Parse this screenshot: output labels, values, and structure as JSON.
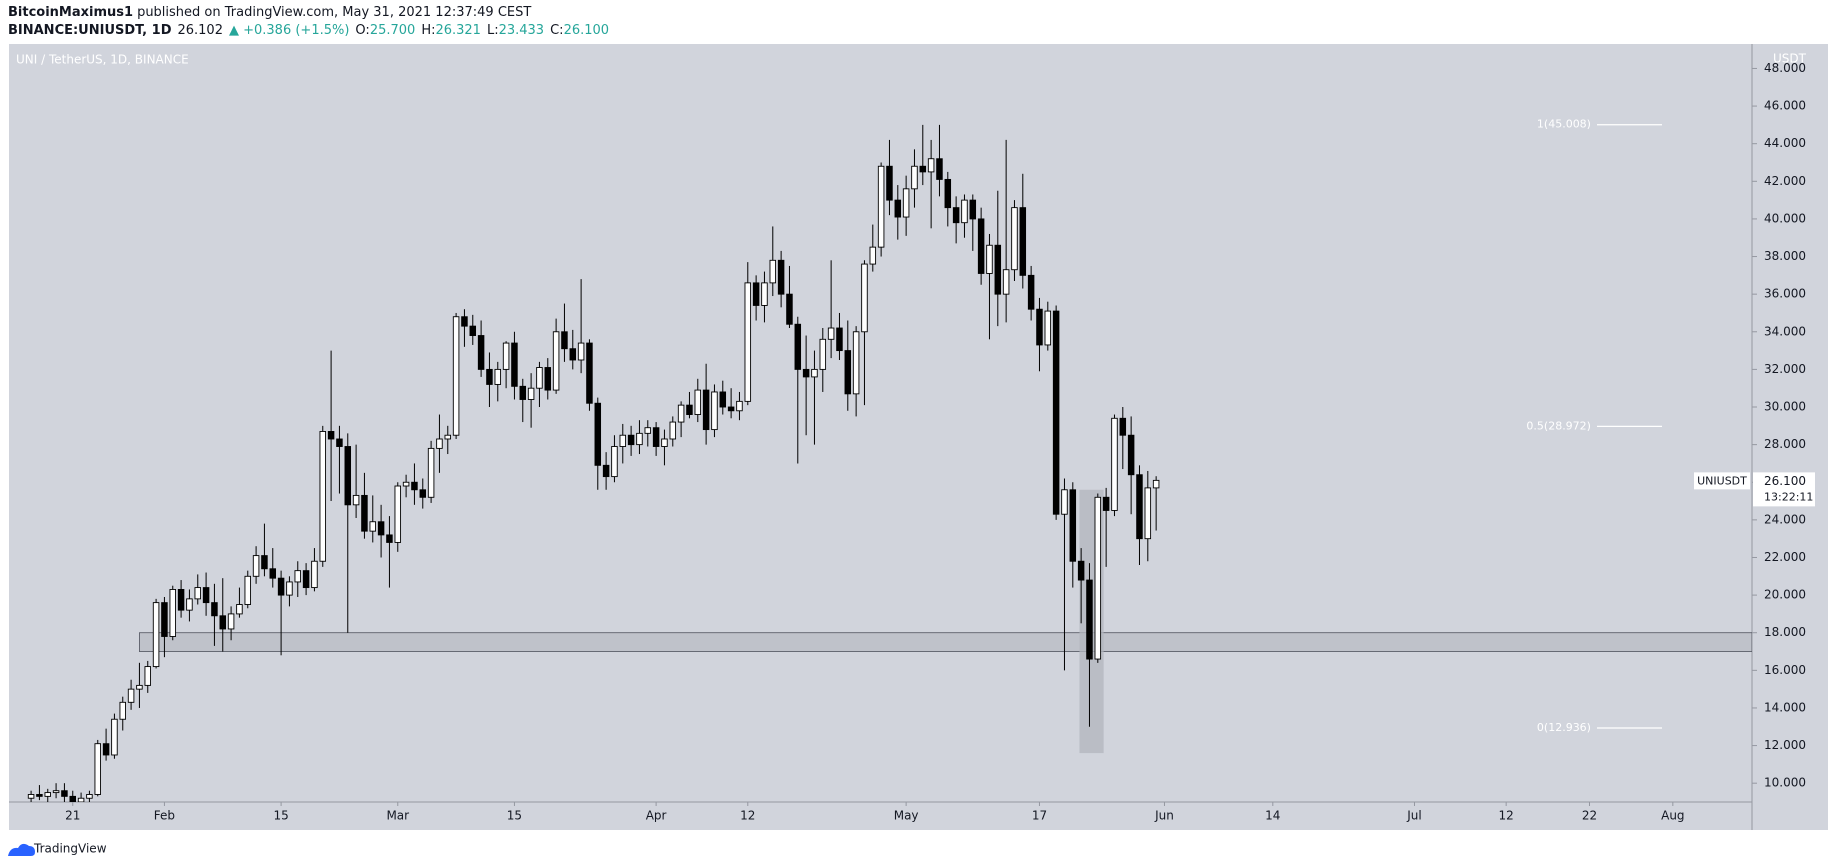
{
  "header": {
    "author": "BitcoinMaximus1",
    "published": "published on TradingView.com, May 31, 2021 12:37:49 CEST",
    "symbol": "BINANCE:UNIUSDT, 1D",
    "last": "26.102",
    "change": "▲ +0.386 (+1.5%)",
    "ohlc": [
      {
        "label": "O:",
        "value": "25.700"
      },
      {
        "label": "H:",
        "value": "26.321"
      },
      {
        "label": "L:",
        "value": "23.433"
      },
      {
        "label": "C:",
        "value": "26.100"
      }
    ]
  },
  "footer": {
    "brand": "TradingView"
  },
  "chart_data": {
    "type": "candlestick",
    "title": "UNI / TetherUS, 1D, BINANCE",
    "y_axis_label": "USDT",
    "up_color": "#ffffff",
    "down_color": "#000000",
    "outline_color": "#000000",
    "grid": false,
    "xlim": [
      13.35,
      222.5
    ],
    "ylim": [
      9.0,
      49.3
    ],
    "xticks": [
      {
        "value": 21,
        "label": "21"
      },
      {
        "value": 32,
        "label": "Feb"
      },
      {
        "value": 46,
        "label": "15"
      },
      {
        "value": 60,
        "label": "Mar"
      },
      {
        "value": 74,
        "label": "15"
      },
      {
        "value": 91,
        "label": "Apr"
      },
      {
        "value": 102,
        "label": "12"
      },
      {
        "value": 121,
        "label": "May"
      },
      {
        "value": 137,
        "label": "17"
      },
      {
        "value": 152,
        "label": "Jun"
      },
      {
        "value": 165,
        "label": "14"
      },
      {
        "value": 182,
        "label": "Jul"
      },
      {
        "value": 193,
        "label": "12"
      },
      {
        "value": 203,
        "label": "22"
      },
      {
        "value": 213,
        "label": "Aug"
      }
    ],
    "yticks": [
      {
        "value": 10,
        "label": "10.000"
      },
      {
        "value": 12,
        "label": "12.000"
      },
      {
        "value": 14,
        "label": "14.000"
      },
      {
        "value": 16,
        "label": "16.000"
      },
      {
        "value": 18,
        "label": "18.000"
      },
      {
        "value": 20,
        "label": "20.000"
      },
      {
        "value": 22,
        "label": "22.000"
      },
      {
        "value": 24,
        "label": "24.000"
      },
      {
        "value": 26,
        "label": "26.000"
      },
      {
        "value": 28,
        "label": "28.000"
      },
      {
        "value": 30,
        "label": "30.000"
      },
      {
        "value": 32,
        "label": "32.000"
      },
      {
        "value": 34,
        "label": "34.000"
      },
      {
        "value": 36,
        "label": "36.000"
      },
      {
        "value": 38,
        "label": "38.000"
      },
      {
        "value": 40,
        "label": "40.000"
      },
      {
        "value": 42,
        "label": "42.000"
      },
      {
        "value": 44,
        "label": "44.000"
      },
      {
        "value": 46,
        "label": "46.000"
      },
      {
        "value": 48,
        "label": "48.000"
      }
    ],
    "x": [
      16,
      17,
      18,
      19,
      20,
      21,
      22,
      23,
      24,
      25,
      26,
      27,
      28,
      29,
      30,
      31,
      32,
      33,
      34,
      35,
      36,
      37,
      38,
      39,
      40,
      41,
      42,
      43,
      44,
      45,
      46,
      47,
      48,
      49,
      50,
      51,
      52,
      53,
      54,
      55,
      56,
      57,
      58,
      59,
      60,
      61,
      62,
      63,
      64,
      65,
      66,
      67,
      68,
      69,
      70,
      71,
      72,
      73,
      74,
      75,
      76,
      77,
      78,
      79,
      80,
      81,
      82,
      83,
      84,
      85,
      86,
      87,
      88,
      89,
      90,
      91,
      92,
      93,
      94,
      95,
      96,
      97,
      98,
      99,
      100,
      101,
      102,
      103,
      104,
      105,
      106,
      107,
      108,
      109,
      110,
      111,
      112,
      113,
      114,
      115,
      116,
      117,
      118,
      119,
      120,
      121,
      122,
      123,
      124,
      125,
      126,
      127,
      128,
      129,
      130,
      131,
      132,
      133,
      134,
      135,
      136,
      137,
      138,
      139,
      140,
      141,
      142,
      143,
      144,
      145,
      146,
      147,
      148,
      149,
      150,
      151
    ],
    "open": [
      9.2,
      9.4,
      9.3,
      9.5,
      9.6,
      9.3,
      9.0,
      9.2,
      9.4,
      12.1,
      11.5,
      13.4,
      14.3,
      15.0,
      15.2,
      16.2,
      19.6,
      17.8,
      20.3,
      19.2,
      19.8,
      20.4,
      19.6,
      18.9,
      18.2,
      19.0,
      19.5,
      21.0,
      22.1,
      21.4,
      20.9,
      20.0,
      20.7,
      21.3,
      20.4,
      21.8,
      28.7,
      28.3,
      27.9,
      24.8,
      25.3,
      23.4,
      23.9,
      23.2,
      22.8,
      25.8,
      26.0,
      25.6,
      25.2,
      27.8,
      28.3,
      28.5,
      34.8,
      34.3,
      33.8,
      32.0,
      31.2,
      32.0,
      33.4,
      31.1,
      30.4,
      31.0,
      32.1,
      30.9,
      34.0,
      33.1,
      32.5,
      33.4,
      30.2,
      26.9,
      26.3,
      27.9,
      28.5,
      28.0,
      28.6,
      28.9,
      27.9,
      28.3,
      29.2,
      30.1,
      29.6,
      30.9,
      28.8,
      30.8,
      30.0,
      29.8,
      30.3,
      36.6,
      35.4,
      36.6,
      37.8,
      36.0,
      34.4,
      32.0,
      31.6,
      32.0,
      33.6,
      34.2,
      33.0,
      30.7,
      34.0,
      37.6,
      38.5,
      42.8,
      41.0,
      40.1,
      41.6,
      42.8,
      42.5,
      43.2,
      42.1,
      40.6,
      39.8,
      41.0,
      40.0,
      37.1,
      38.6,
      36.0,
      37.3,
      40.6,
      37.0,
      35.2,
      33.3,
      35.1,
      24.3,
      25.6,
      21.8,
      20.8,
      16.6,
      25.2,
      24.5,
      29.4,
      28.5,
      26.4,
      23.0,
      25.7
    ],
    "high": [
      9.6,
      9.9,
      9.7,
      10.0,
      10.0,
      9.6,
      9.5,
      9.6,
      12.3,
      12.9,
      13.7,
      14.6,
      15.5,
      16.4,
      16.5,
      19.8,
      19.9,
      20.5,
      20.8,
      20.3,
      21.1,
      21.2,
      20.6,
      20.9,
      19.4,
      20.4,
      21.3,
      22.6,
      23.8,
      22.5,
      21.3,
      21.0,
      21.8,
      21.7,
      22.5,
      29.0,
      33.0,
      29.0,
      28.6,
      28.0,
      26.5,
      25.3,
      24.8,
      24.2,
      26.0,
      26.4,
      27.0,
      26.2,
      28.2,
      29.6,
      29.0,
      35.0,
      35.2,
      34.9,
      34.6,
      32.9,
      32.4,
      33.5,
      34.0,
      31.5,
      31.8,
      32.4,
      32.6,
      34.7,
      35.5,
      34.1,
      36.8,
      33.6,
      30.5,
      27.6,
      28.5,
      29.1,
      29.0,
      29.3,
      29.3,
      29.2,
      28.8,
      29.5,
      30.3,
      30.8,
      31.5,
      32.3,
      31.2,
      31.4,
      31.0,
      30.8,
      37.7,
      37.0,
      37.2,
      39.6,
      38.3,
      37.5,
      34.8,
      33.8,
      33.0,
      34.2,
      37.8,
      35.0,
      34.6,
      34.3,
      37.8,
      39.7,
      43.0,
      44.2,
      41.8,
      42.3,
      43.7,
      45.0,
      44.2,
      45.0,
      42.5,
      41.2,
      41.3,
      41.3,
      40.6,
      39.2,
      41.5,
      44.2,
      41.0,
      42.4,
      37.5,
      35.8,
      35.6,
      35.4,
      26.2,
      26.0,
      22.5,
      21.7,
      25.4,
      25.7,
      29.6,
      30.0,
      29.5,
      26.9,
      26.6,
      26.321
    ],
    "low": [
      9.0,
      9.1,
      9.0,
      9.2,
      9.0,
      8.8,
      8.7,
      9.0,
      9.3,
      11.2,
      11.3,
      12.8,
      13.9,
      14.0,
      14.8,
      16.1,
      16.7,
      17.6,
      18.8,
      18.6,
      19.5,
      18.9,
      17.3,
      17.0,
      17.6,
      18.8,
      19.3,
      20.6,
      21.0,
      20.4,
      16.8,
      19.4,
      19.9,
      20.0,
      20.2,
      21.5,
      25.0,
      25.4,
      18.0,
      24.1,
      23.0,
      22.8,
      22.0,
      20.4,
      22.3,
      25.2,
      24.8,
      24.6,
      24.9,
      26.5,
      27.5,
      28.3,
      33.2,
      33.3,
      31.6,
      30.0,
      30.3,
      31.0,
      30.4,
      29.2,
      28.9,
      30.0,
      30.4,
      30.7,
      32.4,
      32.0,
      31.8,
      29.8,
      25.6,
      25.6,
      26.0,
      27.0,
      27.4,
      27.5,
      27.9,
      27.4,
      26.9,
      27.9,
      28.4,
      29.4,
      29.2,
      28.0,
      28.4,
      29.6,
      29.4,
      29.3,
      30.1,
      34.6,
      34.5,
      35.9,
      35.3,
      34.2,
      27.0,
      28.5,
      28.0,
      30.8,
      32.6,
      32.5,
      29.8,
      29.5,
      30.1,
      37.2,
      38.0,
      40.2,
      38.9,
      39.1,
      40.6,
      41.8,
      39.5,
      41.2,
      39.6,
      38.7,
      39.0,
      38.3,
      36.5,
      33.6,
      34.3,
      34.5,
      36.7,
      36.3,
      34.6,
      31.9,
      33.0,
      24.0,
      16.0,
      20.4,
      18.5,
      13.0,
      16.4,
      21.5,
      24.2,
      26.7,
      24.3,
      21.6,
      21.8,
      23.433
    ],
    "close": [
      9.4,
      9.3,
      9.5,
      9.6,
      9.3,
      9.0,
      9.2,
      9.4,
      12.1,
      11.5,
      13.4,
      14.3,
      15.0,
      15.2,
      16.2,
      19.6,
      17.8,
      20.3,
      19.2,
      19.8,
      20.4,
      19.6,
      18.9,
      18.2,
      19.0,
      19.5,
      21.0,
      22.1,
      21.4,
      20.9,
      20.0,
      20.7,
      21.3,
      20.4,
      21.8,
      28.7,
      28.3,
      27.9,
      24.8,
      25.3,
      23.4,
      23.9,
      23.2,
      22.8,
      25.8,
      26.0,
      25.6,
      25.2,
      27.8,
      28.3,
      28.5,
      34.8,
      34.3,
      33.8,
      32.0,
      31.2,
      32.0,
      33.4,
      31.1,
      30.4,
      31.0,
      32.1,
      30.9,
      34.0,
      33.1,
      32.5,
      33.4,
      30.2,
      26.9,
      26.3,
      27.9,
      28.5,
      28.0,
      28.6,
      28.9,
      27.9,
      28.3,
      29.2,
      30.1,
      29.6,
      30.9,
      28.8,
      30.8,
      30.0,
      29.8,
      30.3,
      36.6,
      35.4,
      36.6,
      37.8,
      36.0,
      34.4,
      32.0,
      31.6,
      32.0,
      33.6,
      34.2,
      33.0,
      30.7,
      34.0,
      37.6,
      38.5,
      42.8,
      41.0,
      40.1,
      41.6,
      42.8,
      42.5,
      43.2,
      42.1,
      40.6,
      39.8,
      41.0,
      40.0,
      37.1,
      38.6,
      36.0,
      37.3,
      40.6,
      37.0,
      35.2,
      33.3,
      35.1,
      24.3,
      25.6,
      21.8,
      20.8,
      16.6,
      25.2,
      24.5,
      29.4,
      28.5,
      26.4,
      23.0,
      25.7,
      26.1
    ],
    "fib_x": [
      203.9,
      211.7
    ],
    "fib_levels": [
      {
        "label": "1(45.008)",
        "value": 45.008
      },
      {
        "label": "0.5(28.972)",
        "value": 28.972
      },
      {
        "label": "0(12.936)",
        "value": 12.936
      }
    ],
    "support_zone": {
      "x_start": 29,
      "y_low": 17,
      "y_high": 18
    },
    "highlight_box": {
      "x_start": 141.8,
      "x_end": 144.7,
      "y_low": 11.6,
      "y_high": 25.6
    },
    "last_price": {
      "symbol": "UNIUSDT",
      "value": 26.1,
      "label": "26.100",
      "countdown": "13:22:11"
    }
  }
}
